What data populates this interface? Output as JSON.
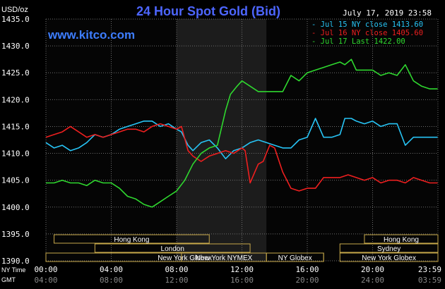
{
  "header": {
    "y_unit": "USD/oz",
    "title": "24 Hour Spot Gold (Bid)",
    "timestamp": "July 17, 2019 23:58",
    "website": "www.kitco.com"
  },
  "colors": {
    "background": "#000000",
    "plot_bg": "#050505",
    "night_shade": "#1c1c1c",
    "grid": "#6e6e6e",
    "axis_text": "#ffffff",
    "title": "#4d66ff",
    "website": "#3d7dff",
    "jul15": "#27c4f5",
    "jul16": "#ee1f1f",
    "jul17": "#2fd82f",
    "session_bar": "#c8a94a"
  },
  "legend": [
    {
      "label": "- Jul 15 NY close 1413.60",
      "color": "#27c4f5"
    },
    {
      "label": "- Jul 16 NY close 1405.60",
      "color": "#ee1f1f"
    },
    {
      "label": "- Jul 17 Last 1422.00",
      "color": "#2fd82f"
    }
  ],
  "axes": {
    "y_ticks": [
      "1435.0",
      "1430.0",
      "1425.0",
      "1420.0",
      "1415.0",
      "1410.0",
      "1405.0",
      "1400.0",
      "1395.0",
      "1390.0"
    ],
    "x_row_labels": [
      "NY Time",
      "GMT"
    ],
    "ny_ticks": [
      "00:00",
      "04:00",
      "08:00",
      "12:00",
      "16:00",
      "20:00",
      "23:59"
    ],
    "gmt_ticks": [
      "04:00",
      "08:00",
      "12:00",
      "16:00",
      "20:00",
      "24:00",
      "03:59"
    ]
  },
  "sessions": [
    {
      "label": "Hong Kong",
      "start": 0.5,
      "end": 10
    },
    {
      "label": "London",
      "start": 3,
      "end": 12.5
    },
    {
      "label": "New York Globex",
      "start": 0,
      "end": 17
    },
    {
      "label": "New York NYMEX",
      "start": 8.3,
      "end": 13.5
    },
    {
      "label": "NY Globex",
      "start": 13.5,
      "end": 17
    },
    {
      "label": "Hong Kong",
      "start": 19.5,
      "end": 24
    },
    {
      "label": "Sydney",
      "start": 18,
      "end": 24
    },
    {
      "label": "New York Globex",
      "start": 18,
      "end": 24
    }
  ],
  "chart_data": {
    "type": "line",
    "title": "24 Hour Spot Gold (Bid)",
    "ylabel": "USD/oz",
    "xlabel": "NY Time / GMT",
    "xlim": [
      0,
      24
    ],
    "ylim": [
      1390,
      1435
    ],
    "x_unit": "hours NY time",
    "shaded_region": [
      8,
      13.5
    ],
    "grid": true,
    "legend_position": "top-right",
    "series": [
      {
        "name": "Jul 15 NY close 1413.60",
        "color": "#27c4f5",
        "x": [
          0,
          0.5,
          1,
          1.5,
          2,
          2.5,
          3,
          3.5,
          4,
          4.5,
          5,
          5.5,
          6,
          6.5,
          7,
          7.5,
          8,
          8.3,
          8.7,
          9,
          9.5,
          10,
          10.5,
          11,
          11.5,
          12,
          12.5,
          13,
          13.5,
          14,
          14.5,
          15,
          15.5,
          16,
          16.5,
          17,
          17.5,
          18,
          18.3,
          18.7,
          19,
          19.5,
          20,
          20.5,
          21,
          21.5,
          22,
          22.5,
          23,
          23.5,
          23.98
        ],
        "y": [
          1412,
          1411,
          1411.5,
          1410.5,
          1411,
          1412,
          1413.5,
          1413,
          1413.5,
          1414.5,
          1415,
          1415.5,
          1416,
          1416,
          1415,
          1415.5,
          1414.5,
          1414,
          1411.5,
          1410.5,
          1412,
          1412.5,
          1411,
          1409,
          1410.5,
          1411,
          1412,
          1412.5,
          1412,
          1411.5,
          1411,
          1411,
          1412.5,
          1413,
          1416.5,
          1413,
          1413,
          1413.5,
          1416.5,
          1416.5,
          1416,
          1415.5,
          1416,
          1415,
          1415.5,
          1415.5,
          1411.5,
          1413,
          1413,
          1413,
          1413
        ]
      },
      {
        "name": "Jul 16 NY close 1405.60",
        "color": "#ee1f1f",
        "x": [
          0,
          0.5,
          1,
          1.5,
          2,
          2.5,
          3,
          3.5,
          4,
          4.5,
          5,
          5.5,
          6,
          6.5,
          7,
          7.5,
          8,
          8.3,
          8.7,
          9,
          9.5,
          10,
          10.5,
          11,
          11.5,
          12,
          12.2,
          12.5,
          13,
          13.3,
          13.7,
          14,
          14.5,
          15,
          15.5,
          16,
          16.5,
          17,
          17.5,
          18,
          18.5,
          19,
          19.5,
          20,
          20.5,
          21,
          21.5,
          22,
          22.5,
          23,
          23.5,
          23.98
        ],
        "y": [
          1413,
          1413.5,
          1414,
          1415,
          1414,
          1413,
          1413.5,
          1413,
          1413.5,
          1414,
          1414.5,
          1414.5,
          1414,
          1415,
          1415.5,
          1415,
          1414.5,
          1415,
          1410.5,
          1409.5,
          1408.5,
          1409.5,
          1410,
          1410.5,
          1410,
          1411,
          1410.5,
          1404.5,
          1408,
          1408.5,
          1411.5,
          1411,
          1406.5,
          1403.5,
          1403,
          1403.5,
          1403.5,
          1405.5,
          1405.5,
          1405.5,
          1406,
          1405.5,
          1405,
          1405.5,
          1404.5,
          1405,
          1405,
          1404.5,
          1405.5,
          1405,
          1404.5,
          1404.5
        ]
      },
      {
        "name": "Jul 17 Last 1422.00",
        "color": "#2fd82f",
        "x": [
          0,
          0.5,
          1,
          1.5,
          2,
          2.5,
          3,
          3.5,
          4,
          4.5,
          5,
          5.5,
          6,
          6.5,
          7,
          7.5,
          8,
          8.5,
          9,
          9.5,
          10,
          10.5,
          11,
          11.3,
          11.7,
          12,
          12.5,
          13,
          13.5,
          14,
          14.5,
          15,
          15.5,
          16,
          16.5,
          17,
          17.5,
          18,
          18.3,
          18.7,
          19,
          19.5,
          20,
          20.5,
          21,
          21.5,
          22,
          22.5,
          23,
          23.5,
          23.98
        ],
        "y": [
          1404.5,
          1404.5,
          1405,
          1404.5,
          1404.5,
          1404,
          1405,
          1404.5,
          1404.5,
          1403.5,
          1402,
          1401.5,
          1400.5,
          1400,
          1401,
          1402,
          1403,
          1405,
          1408,
          1410,
          1411,
          1411.5,
          1418,
          1421,
          1422.5,
          1423.5,
          1422.5,
          1421.5,
          1421.5,
          1421.5,
          1421.5,
          1424.5,
          1423.5,
          1425,
          1425.5,
          1426,
          1426.5,
          1427,
          1426.5,
          1427.5,
          1425.5,
          1425.5,
          1425.5,
          1424.5,
          1425,
          1424.5,
          1426.5,
          1423.5,
          1422.5,
          1422,
          1422
        ]
      }
    ]
  }
}
